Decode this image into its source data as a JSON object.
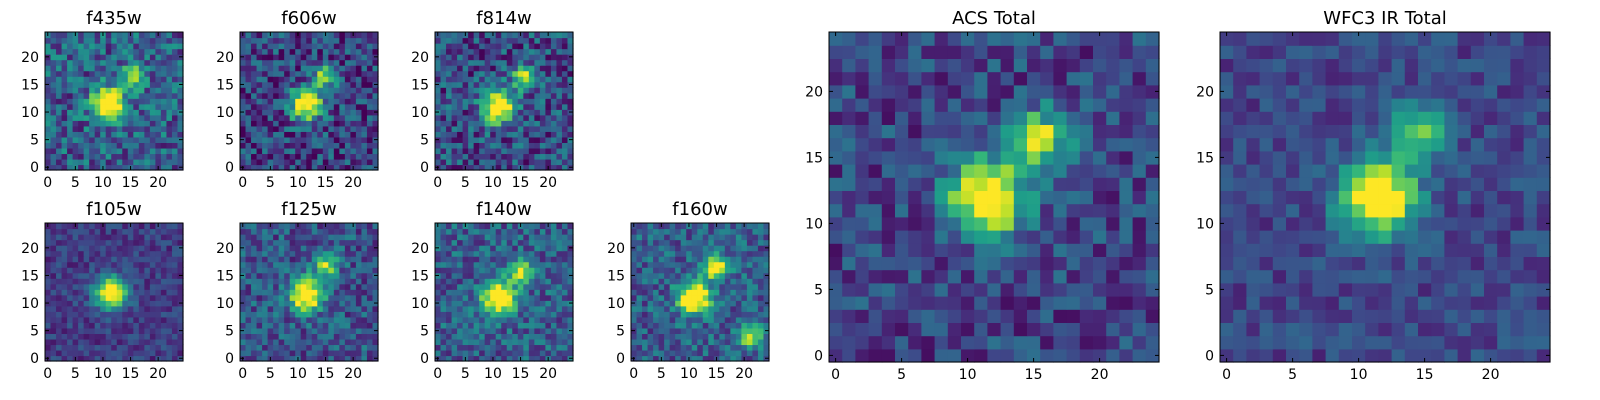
{
  "chart_data": {
    "type": "heatmap",
    "colormap": "viridis",
    "grid_size": 25,
    "panels": [
      {
        "id": "f435w",
        "title": "f435w",
        "xticks": [
          0,
          5,
          10,
          15,
          20
        ],
        "yticks": [
          0,
          5,
          10,
          15,
          20
        ],
        "xlim": [
          0,
          24
        ],
        "ylim": [
          0,
          24
        ],
        "peaks": [
          {
            "x": 11,
            "y": 11.5,
            "amp": 1.0
          },
          {
            "x": 15.5,
            "y": 16.5,
            "amp": 0.75
          }
        ],
        "background": 0.5,
        "noise": 0.3,
        "seed": 11
      },
      {
        "id": "f606w",
        "title": "f606w",
        "xticks": [
          0,
          5,
          10,
          15,
          20
        ],
        "yticks": [
          0,
          5,
          10,
          15,
          20
        ],
        "xlim": [
          0,
          24
        ],
        "ylim": [
          0,
          24
        ],
        "peaks": [
          {
            "x": 11.5,
            "y": 11.5,
            "amp": 1.0
          },
          {
            "x": 15,
            "y": 16.5,
            "amp": 0.6
          }
        ],
        "background": 0.35,
        "noise": 0.3,
        "seed": 23
      },
      {
        "id": "f814w",
        "title": "f814w",
        "xticks": [
          0,
          5,
          10,
          15,
          20
        ],
        "yticks": [
          0,
          5,
          10,
          15,
          20
        ],
        "xlim": [
          0,
          24
        ],
        "ylim": [
          0,
          24
        ],
        "peaks": [
          {
            "x": 11,
            "y": 11,
            "amp": 1.0
          },
          {
            "x": 15.5,
            "y": 16.5,
            "amp": 0.6
          }
        ],
        "background": 0.4,
        "noise": 0.3,
        "seed": 37
      },
      {
        "id": "f105w",
        "title": "f105w",
        "xticks": [
          0,
          5,
          10,
          15,
          20
        ],
        "yticks": [
          0,
          5,
          10,
          15,
          20
        ],
        "xlim": [
          0,
          24
        ],
        "ylim": [
          0,
          24
        ],
        "peaks": [
          {
            "x": 11.5,
            "y": 12,
            "amp": 1.0
          }
        ],
        "background": 0.3,
        "noise": 0.15,
        "seed": 41
      },
      {
        "id": "f125w",
        "title": "f125w",
        "xticks": [
          0,
          5,
          10,
          15,
          20
        ],
        "yticks": [
          0,
          5,
          10,
          15,
          20
        ],
        "xlim": [
          0,
          24
        ],
        "ylim": [
          0,
          24
        ],
        "peaks": [
          {
            "x": 11.5,
            "y": 11.5,
            "amp": 1.0
          },
          {
            "x": 15,
            "y": 17,
            "amp": 0.6
          }
        ],
        "background": 0.45,
        "noise": 0.25,
        "seed": 53
      },
      {
        "id": "f140w",
        "title": "f140w",
        "xticks": [
          0,
          5,
          10,
          15,
          20
        ],
        "yticks": [
          0,
          5,
          10,
          15,
          20
        ],
        "xlim": [
          0,
          24
        ],
        "ylim": [
          0,
          24
        ],
        "peaks": [
          {
            "x": 11,
            "y": 11,
            "amp": 1.0
          },
          {
            "x": 15,
            "y": 15.5,
            "amp": 0.7
          }
        ],
        "background": 0.5,
        "noise": 0.25,
        "seed": 67
      },
      {
        "id": "f160w",
        "title": "f160w",
        "xticks": [
          0,
          5,
          10,
          15,
          20
        ],
        "yticks": [
          0,
          5,
          10,
          15,
          20
        ],
        "xlim": [
          0,
          24
        ],
        "ylim": [
          0,
          24
        ],
        "peaks": [
          {
            "x": 11,
            "y": 11,
            "amp": 1.0
          },
          {
            "x": 15,
            "y": 16.5,
            "amp": 0.8
          },
          {
            "x": 21,
            "y": 4,
            "amp": 0.6
          }
        ],
        "background": 0.5,
        "noise": 0.25,
        "seed": 79
      },
      {
        "id": "acs_total",
        "title": "ACS Total",
        "xticks": [
          0,
          5,
          10,
          15,
          20
        ],
        "yticks": [
          0,
          5,
          10,
          15,
          20
        ],
        "xlim": [
          0,
          24
        ],
        "ylim": [
          0,
          24
        ],
        "peaks": [
          {
            "x": 11.5,
            "y": 12,
            "amp": 1.0
          },
          {
            "x": 15.5,
            "y": 16.5,
            "amp": 0.7
          }
        ],
        "background": 0.35,
        "noise": 0.22,
        "seed": 91
      },
      {
        "id": "wfc3_ir_total",
        "title": "WFC3 IR Total",
        "xticks": [
          0,
          5,
          10,
          15,
          20
        ],
        "yticks": [
          0,
          5,
          10,
          15,
          20
        ],
        "xlim": [
          0,
          24
        ],
        "ylim": [
          0,
          24
        ],
        "peaks": [
          {
            "x": 11.5,
            "y": 12,
            "amp": 1.0
          },
          {
            "x": 14.5,
            "y": 17,
            "amp": 0.55
          }
        ],
        "background": 0.35,
        "noise": 0.15,
        "seed": 103
      }
    ]
  }
}
